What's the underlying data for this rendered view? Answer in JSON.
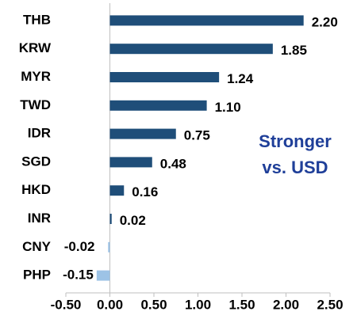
{
  "chart_data": {
    "type": "hbar",
    "categories": [
      "THB",
      "KRW",
      "MYR",
      "TWD",
      "IDR",
      "SGD",
      "HKD",
      "INR",
      "CNY",
      "PHP"
    ],
    "values": [
      2.2,
      1.85,
      1.24,
      1.1,
      0.75,
      0.48,
      0.16,
      0.02,
      -0.02,
      -0.15
    ],
    "value_labels": [
      "2.20",
      "1.85",
      "1.24",
      "1.10",
      "0.75",
      "0.48",
      "0.16",
      "0.02",
      "-0.02",
      "-0.15"
    ],
    "color": "#1f4e79",
    "negative_color": "#9dc3e6",
    "xlim": [
      -0.5,
      2.5
    ],
    "xticks": [
      {
        "value": -0.5,
        "label": "-0.50"
      },
      {
        "value": 0,
        "label": "0.00"
      },
      {
        "value": 0.5,
        "label": "0.50"
      },
      {
        "value": 1,
        "label": "1.00"
      },
      {
        "value": 1.5,
        "label": "1.50"
      },
      {
        "value": 2,
        "label": "2.00"
      },
      {
        "value": 2.5,
        "label": "2.50"
      }
    ],
    "grid": false,
    "annotation": [
      "Stronger",
      "vs. USD"
    ]
  }
}
